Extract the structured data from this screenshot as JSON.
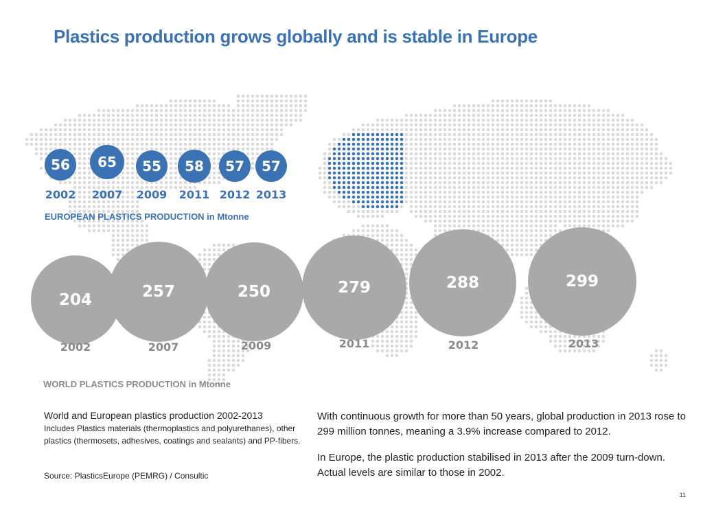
{
  "title": "Plastics production grows globally and is stable in Europe",
  "colors": {
    "blue": "#3a72b4",
    "grey_bubble": "#a9a9a9",
    "grey_text": "#8a8a8a",
    "map_grey": "#d9d9d9"
  },
  "chart_data": [
    {
      "type": "bubble",
      "title": "EUROPEAN PLASTICS PRODUCTION in Mtonne",
      "categories": [
        "2002",
        "2007",
        "2009",
        "2011",
        "2012",
        "2013"
      ],
      "values": [
        56,
        65,
        55,
        58,
        57,
        57
      ],
      "unit": "Mtonne"
    },
    {
      "type": "bubble",
      "title": "WORLD PLASTICS PRODUCTION in Mtonne",
      "categories": [
        "2002",
        "2007",
        "2009",
        "2011",
        "2012",
        "2013"
      ],
      "values": [
        204,
        257,
        250,
        279,
        288,
        299
      ],
      "unit": "Mtonne"
    }
  ],
  "caption": {
    "lead": "World and European  plastics production 2002-2013",
    "detail": "Includes Plastics materials (thermoplastics and polyurethanes), other plastics (thermosets, adhesives, coatings and sealants) and PP-fibers."
  },
  "source": "Source: PlasticsEurope (PEMRG) / Consultic",
  "body": {
    "p1": "With continuous growth for more than 50 years, global production in 2013 rose to 299 million tonnes, meaning a 3.9% increase compared to 2012.",
    "p2": "In Europe, the plastic production stabilised in 2013 after the 2009 turn-down. Actual levels are similar to those in 2002."
  },
  "page_number": "11"
}
